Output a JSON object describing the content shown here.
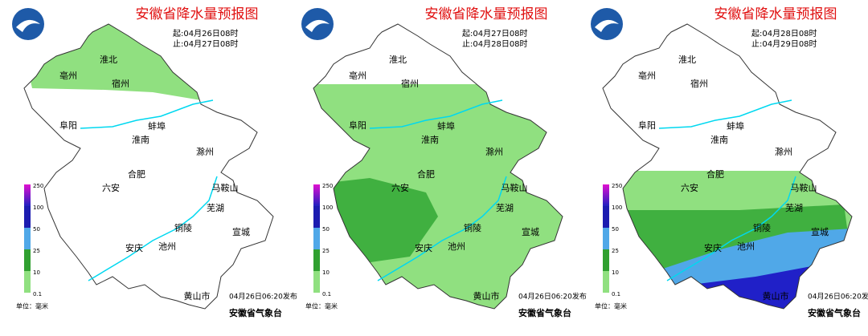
{
  "panels": [
    {
      "title": "安徽省降水量预报图",
      "start": "起:04月26日08时",
      "end": "止:04月27日08时"
    },
    {
      "title": "安徽省降水量预报图",
      "start": "起:04月27日08时",
      "end": "止:04月28日08时"
    },
    {
      "title": "安徽省降水量预报图",
      "start": "起:04月28日08时",
      "end": "止:04月29日08时"
    }
  ],
  "cities": [
    "淮北",
    "亳州",
    "宿州",
    "阜阳",
    "蚌埠",
    "淮南",
    "滁州",
    "六安",
    "合肥",
    "马鞍山",
    "芜湖",
    "铜陵",
    "宣城",
    "安庆",
    "池州",
    "黄山市"
  ],
  "legend": {
    "labels": [
      "250",
      "100",
      "50",
      "25",
      "10",
      "0.1"
    ],
    "unit": "单位：毫米"
  },
  "issued": "04月26日06:20发布",
  "org": "安徽省气象台"
}
